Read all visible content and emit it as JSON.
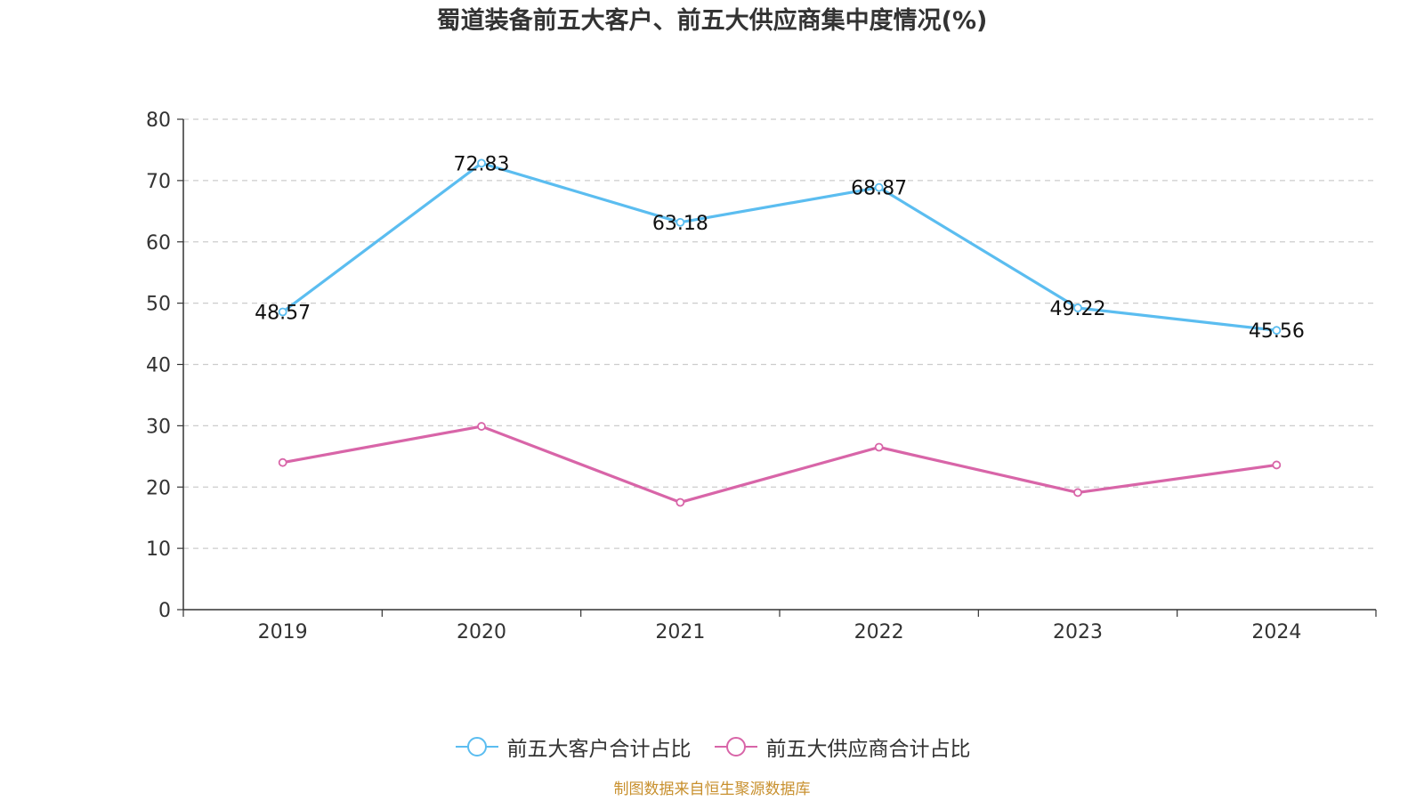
{
  "title": "蜀道装备前五大客户、前五大供应商集中度情况(%)",
  "source": "制图数据来自恒生聚源数据库",
  "colors": {
    "series1": "#5bbdf0",
    "series2": "#d865a8",
    "source": "#c8902e",
    "grid": "#cccccc",
    "axis": "#333333"
  },
  "chart_data": {
    "type": "line",
    "title": "蜀道装备前五大客户、前五大供应商集中度情况(%)",
    "categories": [
      "2019",
      "2020",
      "2021",
      "2022",
      "2023",
      "2024"
    ],
    "ylim": [
      0,
      80
    ],
    "yticks": [
      0,
      10,
      20,
      30,
      40,
      50,
      60,
      70,
      80
    ],
    "grid": true,
    "legend_position": "bottom",
    "series": [
      {
        "name": "前五大客户合计占比",
        "values": [
          48.57,
          72.83,
          63.18,
          68.87,
          49.22,
          45.56
        ],
        "labels": [
          "48.57",
          "72.83",
          "63.18",
          "68.87",
          "49.22",
          "45.56"
        ],
        "show_labels": true
      },
      {
        "name": "前五大供应商合计占比",
        "values": [
          24.0,
          29.9,
          17.5,
          26.5,
          19.1,
          23.6
        ],
        "show_labels": false
      }
    ]
  }
}
